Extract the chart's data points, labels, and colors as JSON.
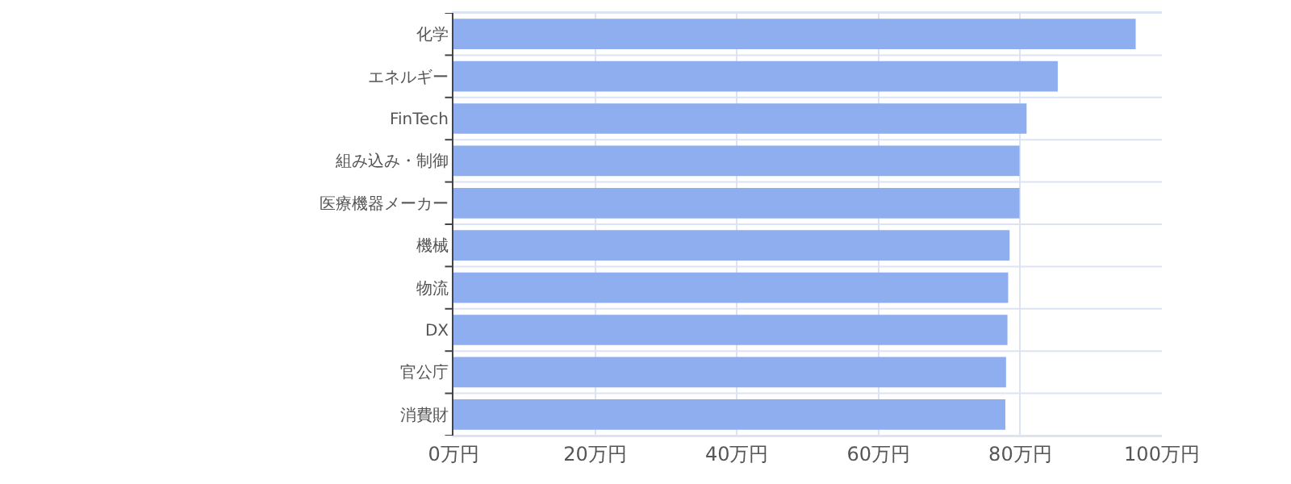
{
  "chart_data": {
    "type": "bar",
    "orientation": "horizontal",
    "categories": [
      "化学",
      "エネルギー",
      "FinTech",
      "組み込み・制御",
      "医療機器メーカー",
      "機械",
      "物流",
      "DX",
      "官公庁",
      "消費財"
    ],
    "values": [
      96.3,
      85.3,
      80.9,
      79.9,
      79.9,
      78.5,
      78.3,
      78.2,
      78.0,
      77.9
    ],
    "color": "#8eaef0",
    "xlim": [
      0,
      100
    ],
    "xticks": [
      {
        "value": 0,
        "label": "0万円"
      },
      {
        "value": 20,
        "label": "20万円"
      },
      {
        "value": 40,
        "label": "40万円"
      },
      {
        "value": 60,
        "label": "60万円"
      },
      {
        "value": 80,
        "label": "80万円"
      },
      {
        "value": 100,
        "label": "100万円"
      }
    ],
    "grid": true
  }
}
